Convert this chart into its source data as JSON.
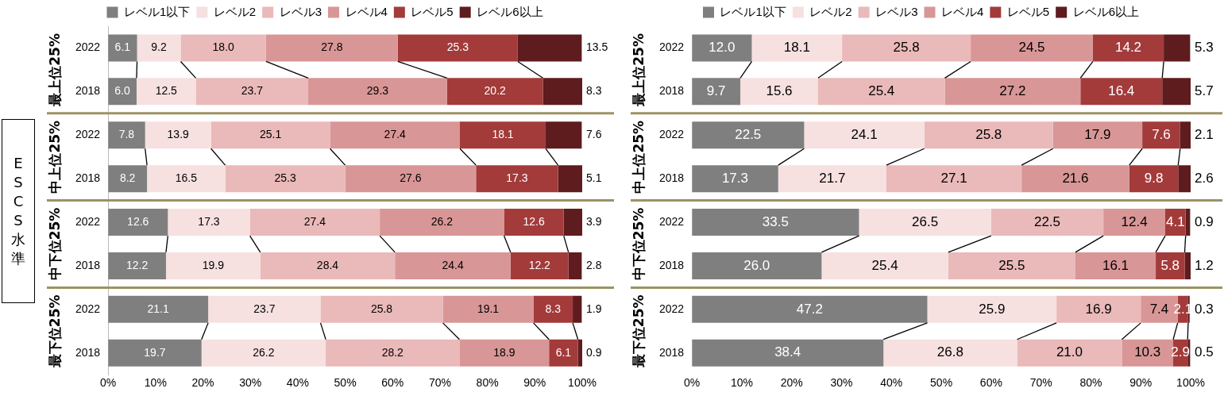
{
  "chart_data": [
    {
      "type": "bar",
      "orientation": "horizontal",
      "stacked": true,
      "legend": "top",
      "grid": false,
      "ylabel": "ESCS 水準",
      "categories": [
        "2022",
        "2018",
        "2022",
        "2018",
        "2022",
        "2018",
        "2022",
        "2018"
      ],
      "annotations": [
        "最上位25%",
        "中上位25%",
        "中下位25%",
        "最下位25%"
      ],
      "xlim": [
        0,
        100
      ],
      "xticks": [
        {
          "value": 0,
          "label": "0%"
        },
        {
          "value": 10,
          "label": "10%"
        },
        {
          "value": 20,
          "label": "20%"
        },
        {
          "value": 30,
          "label": "30%"
        },
        {
          "value": 40,
          "label": "40%"
        },
        {
          "value": 50,
          "label": "50%"
        },
        {
          "value": 60,
          "label": "60%"
        },
        {
          "value": 70,
          "label": "70%"
        },
        {
          "value": 80,
          "label": "80%"
        },
        {
          "value": 90,
          "label": "90%"
        },
        {
          "value": 100,
          "label": "100%"
        }
      ],
      "series": [
        {
          "name": "レベル1以下",
          "color": "#7f7f7f",
          "values": [
            6.1,
            6.0,
            7.8,
            8.2,
            12.6,
            12.2,
            21.1,
            19.7
          ],
          "value_labels": [
            "6.1",
            "6.0",
            "7.8",
            "8.2",
            "12.6",
            "12.2",
            "21.1",
            "19.7"
          ]
        },
        {
          "name": "レベル2",
          "color": "#f6e0e0",
          "values": [
            9.2,
            12.5,
            13.9,
            16.5,
            17.3,
            19.9,
            23.7,
            26.2
          ],
          "value_labels": [
            "9.2",
            "12.5",
            "13.9",
            "16.5",
            "17.3",
            "19.9",
            "23.7",
            "26.2"
          ]
        },
        {
          "name": "レベル3",
          "color": "#eab9b9",
          "values": [
            18.0,
            23.7,
            25.1,
            25.3,
            27.4,
            28.4,
            25.8,
            28.2
          ],
          "value_labels": [
            "18.0",
            "23.7",
            "25.1",
            "25.3",
            "27.4",
            "28.4",
            "25.8",
            "28.2"
          ]
        },
        {
          "name": "レベル4",
          "color": "#d99696",
          "values": [
            27.8,
            29.3,
            27.4,
            27.6,
            26.2,
            24.4,
            19.1,
            18.9
          ],
          "value_labels": [
            "27.8",
            "29.3",
            "27.4",
            "27.6",
            "26.2",
            "24.4",
            "19.1",
            "18.9"
          ]
        },
        {
          "name": "レベル5",
          "color": "#a33b3b",
          "values": [
            25.3,
            20.2,
            18.1,
            17.3,
            12.6,
            12.2,
            8.3,
            6.1
          ],
          "value_labels": [
            "25.3",
            "20.2",
            "18.1",
            "17.3",
            "12.6",
            "12.2",
            "8.3",
            "6.1"
          ]
        },
        {
          "name": "レベル6以上",
          "color": "#5e1c1f",
          "values": [
            13.5,
            8.3,
            7.6,
            5.1,
            3.9,
            2.8,
            1.9,
            0.9
          ],
          "value_labels": [
            "13.5",
            "8.3",
            "7.6",
            "5.1",
            "3.9",
            "2.8",
            "1.9",
            "0.9"
          ]
        }
      ]
    },
    {
      "type": "bar",
      "orientation": "horizontal",
      "stacked": true,
      "legend": "top",
      "grid": false,
      "categories": [
        "2022",
        "2018",
        "2022",
        "2018",
        "2022",
        "2018",
        "2022",
        "2018"
      ],
      "annotations": [
        "最上位25%",
        "中上位25%",
        "中下位25%",
        "最下位25%"
      ],
      "xlim": [
        0,
        100
      ],
      "xticks": [
        {
          "value": 0,
          "label": "0%"
        },
        {
          "value": 10,
          "label": "10%"
        },
        {
          "value": 20,
          "label": "20%"
        },
        {
          "value": 30,
          "label": "30%"
        },
        {
          "value": 40,
          "label": "40%"
        },
        {
          "value": 50,
          "label": "50%"
        },
        {
          "value": 60,
          "label": "60%"
        },
        {
          "value": 70,
          "label": "70%"
        },
        {
          "value": 80,
          "label": "80%"
        },
        {
          "value": 90,
          "label": "90%"
        },
        {
          "value": 100,
          "label": "100%"
        }
      ],
      "series": [
        {
          "name": "レベル1以下",
          "color": "#7f7f7f",
          "values": [
            12.0,
            9.7,
            22.5,
            17.3,
            33.5,
            26.0,
            47.2,
            38.4
          ],
          "value_labels": [
            "12.0",
            "9.7",
            "22.5",
            "17.3",
            "33.5",
            "26.0",
            "47.2",
            "38.4"
          ]
        },
        {
          "name": "レベル2",
          "color": "#f6e0e0",
          "values": [
            18.1,
            15.6,
            24.1,
            21.7,
            26.5,
            25.4,
            25.9,
            26.8
          ],
          "value_labels": [
            "18.1",
            "15.6",
            "24.1",
            "21.7",
            "26.5",
            "25.4",
            "25.9",
            "26.8"
          ]
        },
        {
          "name": "レベル3",
          "color": "#eab9b9",
          "values": [
            25.8,
            25.4,
            25.8,
            27.1,
            22.5,
            25.5,
            16.9,
            21.0
          ],
          "value_labels": [
            "25.8",
            "25.4",
            "25.8",
            "27.1",
            "22.5",
            "25.5",
            "16.9",
            "21.0"
          ]
        },
        {
          "name": "レベル4",
          "color": "#d99696",
          "values": [
            24.5,
            27.2,
            17.9,
            21.6,
            12.4,
            16.1,
            7.4,
            10.3
          ],
          "value_labels": [
            "24.5",
            "27.2",
            "17.9",
            "21.6",
            "12.4",
            "16.1",
            "7.4",
            "10.3"
          ]
        },
        {
          "name": "レベル5",
          "color": "#a33b3b",
          "values": [
            14.2,
            16.4,
            7.6,
            9.8,
            4.1,
            5.8,
            2.1,
            2.9
          ],
          "value_labels": [
            "14.2",
            "16.4",
            "7.6",
            "9.8",
            "4.1",
            "5.8",
            "2.1",
            "2.9"
          ]
        },
        {
          "name": "レベル6以上",
          "color": "#5e1c1f",
          "values": [
            5.3,
            5.7,
            2.1,
            2.6,
            0.9,
            1.2,
            0.3,
            0.5
          ],
          "value_labels": [
            "5.3",
            "5.7",
            "2.1",
            "2.6",
            "0.9",
            "1.2",
            "0.3",
            "0.5"
          ]
        }
      ]
    }
  ]
}
